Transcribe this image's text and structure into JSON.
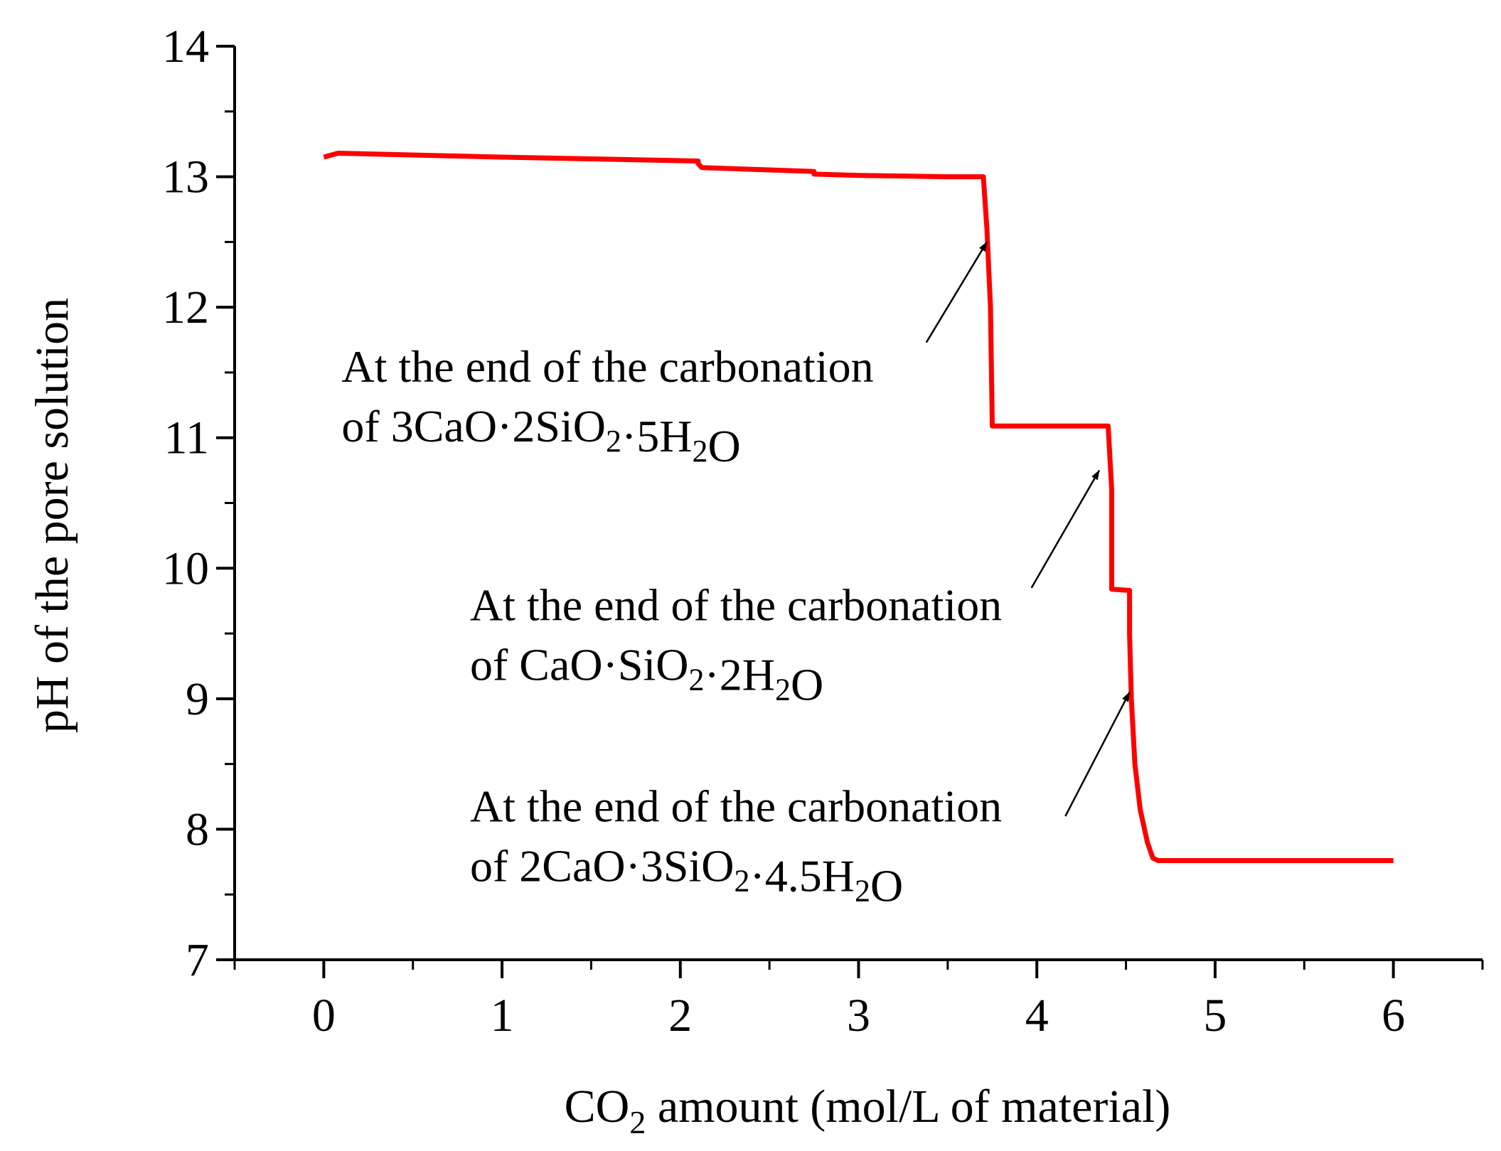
{
  "chart_data": {
    "type": "line",
    "title": "",
    "xlabel": {
      "before": "CO",
      "sub": "2",
      "after": " amount (mol/L of material)"
    },
    "ylabel": "pH of the pore solution",
    "xlim": [
      -0.5,
      6.5
    ],
    "ylim": [
      7,
      14
    ],
    "xticks": [
      0,
      1,
      2,
      3,
      4,
      5,
      6
    ],
    "yticks": [
      7,
      8,
      9,
      10,
      11,
      12,
      13,
      14
    ],
    "grid": false,
    "legend": "none",
    "colors": {
      "series": "#ff0000",
      "axis": "#000000",
      "annotation": "#000000"
    },
    "series": [
      {
        "x": [
          0,
          0.08,
          1.0,
          2.1,
          2.1,
          2.12,
          2.75,
          2.75,
          3.0,
          3.5,
          3.7,
          3.72,
          3.74,
          3.75,
          3.75,
          4.0,
          4.4,
          4.42,
          4.42,
          4.52,
          4.52,
          4.53,
          4.55,
          4.58,
          4.62,
          4.65,
          4.68,
          5.0,
          6.0
        ],
        "y": [
          13.15,
          13.18,
          13.15,
          13.12,
          13.1,
          13.07,
          13.04,
          13.02,
          13.01,
          13.0,
          13.0,
          12.6,
          12.0,
          11.1,
          11.09,
          11.09,
          11.09,
          10.6,
          9.84,
          9.83,
          9.5,
          9.0,
          8.5,
          8.15,
          7.9,
          7.78,
          7.76,
          7.76,
          7.76
        ]
      }
    ],
    "annotations": [
      {
        "line1": "At the end of the carbonation",
        "line2": [
          {
            "t": "of 3CaO·2SiO"
          },
          {
            "t": "2",
            "sub": true
          },
          {
            "t": "·5H"
          },
          {
            "t": "2",
            "sub": true
          },
          {
            "t": "O"
          }
        ],
        "arrow_to": [
          3.72,
          12.5
        ],
        "arrow_from": [
          3.38,
          11.73
        ],
        "label_at": [
          0.1,
          11.43
        ]
      },
      {
        "line1": "At the end of the carbonation",
        "line2": [
          {
            "t": "of CaO·SiO"
          },
          {
            "t": "2",
            "sub": true
          },
          {
            "t": "·2H"
          },
          {
            "t": "2",
            "sub": true
          },
          {
            "t": "O"
          }
        ],
        "arrow_to": [
          4.35,
          10.75
        ],
        "arrow_from": [
          3.97,
          9.85
        ],
        "label_at": [
          0.82,
          9.6
        ]
      },
      {
        "line1": "At the end of the carbonation",
        "line2": [
          {
            "t": "of 2CaO·3SiO"
          },
          {
            "t": "2",
            "sub": true
          },
          {
            "t": "·4.5H"
          },
          {
            "t": "2",
            "sub": true
          },
          {
            "t": "O"
          }
        ],
        "arrow_to": [
          4.52,
          9.05
        ],
        "arrow_from": [
          4.16,
          8.1
        ],
        "label_at": [
          0.82,
          8.06
        ]
      }
    ]
  }
}
